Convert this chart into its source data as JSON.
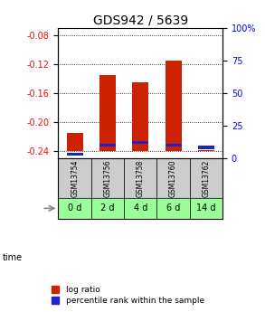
{
  "title": "GDS942 / 5639",
  "samples": [
    "GSM13754",
    "GSM13756",
    "GSM13758",
    "GSM13760",
    "GSM13762"
  ],
  "time_labels": [
    "0 d",
    "2 d",
    "4 d",
    "6 d",
    "14 d"
  ],
  "log_ratio": [
    -0.215,
    -0.135,
    -0.145,
    -0.115,
    -0.239
  ],
  "percentile_rank": [
    3,
    10,
    12,
    10,
    8
  ],
  "ylim_left": [
    -0.25,
    -0.07
  ],
  "ylim_right": [
    0,
    100
  ],
  "yticks_left": [
    -0.24,
    -0.2,
    -0.16,
    -0.12,
    -0.08
  ],
  "yticks_right": [
    0,
    25,
    50,
    75,
    100
  ],
  "bar_width": 0.5,
  "bar_color_red": "#cc2200",
  "bar_color_blue": "#2222cc",
  "sample_bg_color": "#cccccc",
  "time_bg_color": "#99ff99",
  "title_fontsize": 10,
  "tick_fontsize": 7,
  "legend_fontsize": 6.5
}
